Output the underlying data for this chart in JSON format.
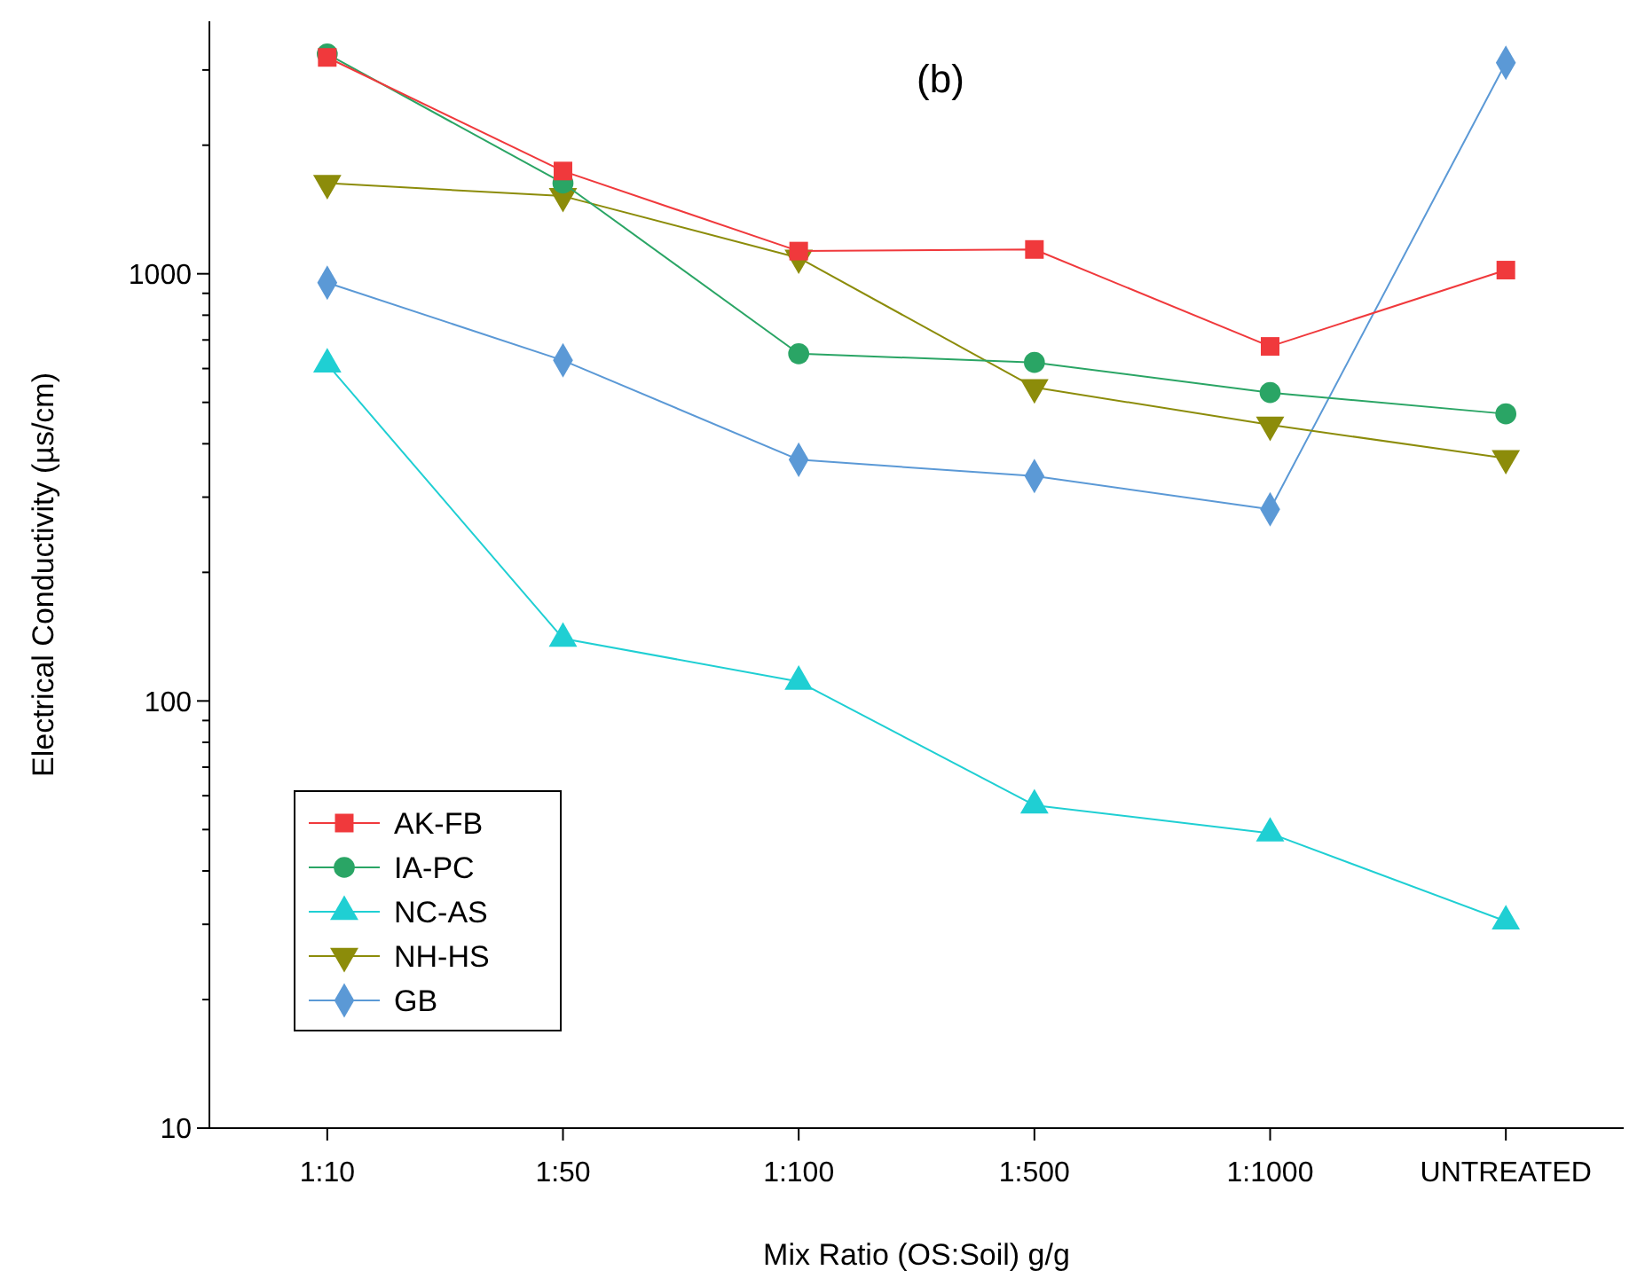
{
  "chart_data": {
    "type": "line",
    "title": "(b)",
    "xlabel": "Mix Ratio (OS:Soil) g/g",
    "ylabel": "Electrical Conductivity (µs/cm)",
    "categories": [
      "1:10",
      "1:50",
      "1:100",
      "1:500",
      "1:1000",
      "UNTREATED"
    ],
    "log": "y",
    "ylim": [
      10,
      3900
    ],
    "yticks": [
      10,
      {
        "value": 20,
        "label": null
      },
      {
        "value": 30,
        "label": null
      },
      {
        "value": 40,
        "label": null
      },
      {
        "value": 50,
        "label": null
      },
      {
        "value": 60,
        "label": null
      },
      {
        "value": 70,
        "label": null
      },
      {
        "value": 80,
        "label": null
      },
      {
        "value": 90,
        "label": null
      },
      100,
      {
        "value": 200,
        "label": null
      },
      {
        "value": 300,
        "label": null
      },
      {
        "value": 400,
        "label": null
      },
      {
        "value": 500,
        "label": null
      },
      {
        "value": 600,
        "label": null
      },
      {
        "value": 700,
        "label": null
      },
      {
        "value": 800,
        "label": null
      },
      {
        "value": 900,
        "label": null
      },
      1000,
      {
        "value": 2000,
        "label": null
      },
      {
        "value": 3000,
        "label": null
      }
    ],
    "legend": "bottom left",
    "grid": false,
    "line_style": "solid",
    "series": [
      {
        "name": "AK-FB",
        "color": "#f0393c",
        "marker": "square",
        "values": [
          3210,
          1740,
          1130,
          1140,
          676,
          1020
        ]
      },
      {
        "name": "IA-PC",
        "color": "#2aa565",
        "marker": "circle",
        "values": [
          3270,
          1630,
          650,
          620,
          527,
          470
        ]
      },
      {
        "name": "NC-AS",
        "color": "#1fcfd3",
        "marker": "triangle",
        "values": [
          614,
          140,
          111,
          57,
          49,
          30.5
        ]
      },
      {
        "name": "NH-HS",
        "color": "#8c8c0a",
        "marker": "triangle-down",
        "values": [
          1630,
          1520,
          1090,
          542,
          443,
          370
        ]
      },
      {
        "name": "GB",
        "color": "#5b99d6",
        "marker": "diamond",
        "values": [
          953,
          627,
          367,
          336,
          281,
          3120
        ]
      }
    ]
  }
}
